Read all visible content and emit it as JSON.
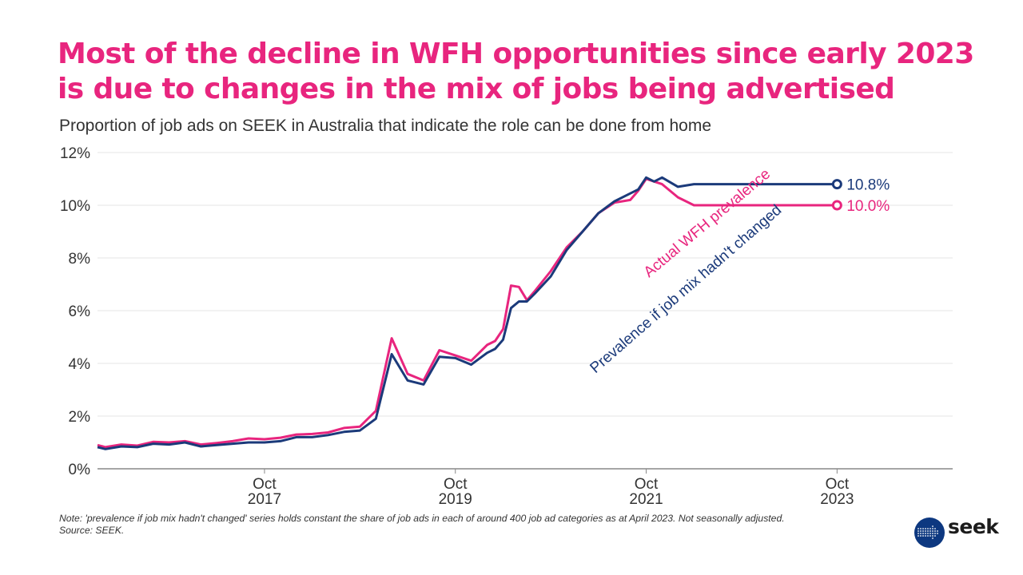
{
  "header": {
    "title_line1": "Most of the decline in WFH opportunities since early 2023",
    "title_line2": "is due to changes in the mix of jobs being advertised",
    "subtitle": "Proportion of job ads on SEEK in Australia that indicate the role can be done from home"
  },
  "footer": {
    "note": "Note: 'prevalence if job mix hadn't changed' series holds constant the share of job ads in each of around 400 job ad categories as at April 2023. Not seasonally adjusted.",
    "source": "Source: SEEK.",
    "logo_text": "seek"
  },
  "colors": {
    "actual": "#e8257e",
    "fixed_mix": "#1b3a7a",
    "grid": "#eeeeee",
    "axis": "#888888",
    "text": "#333333"
  },
  "chart_data": {
    "type": "line",
    "title": "Most of the decline in WFH opportunities since early 2023 is due to changes in the mix of jobs being advertised",
    "subtitle": "Proportion of job ads on SEEK in Australia that indicate the role can be done from home",
    "xlabel": "",
    "ylabel": "",
    "ylim": [
      0,
      12
    ],
    "xlim": [
      "2016-01",
      "2024-09"
    ],
    "grid": true,
    "yticks": [
      {
        "value": 0,
        "label": "0%"
      },
      {
        "value": 2,
        "label": "2%"
      },
      {
        "value": 4,
        "label": "4%"
      },
      {
        "value": 6,
        "label": "6%"
      },
      {
        "value": 8,
        "label": "8%"
      },
      {
        "value": 10,
        "label": "10%"
      },
      {
        "value": 12,
        "label": "12%"
      }
    ],
    "xticks": [
      {
        "month": 21,
        "line1": "Oct",
        "line2": "2017"
      },
      {
        "month": 45,
        "line1": "Oct",
        "line2": "2019"
      },
      {
        "month": 69,
        "line1": "Oct",
        "line2": "2021"
      },
      {
        "month": 93,
        "line1": "Oct",
        "line2": "2023"
      }
    ],
    "x_unit": "months since Jan 2016",
    "x": [
      0,
      1,
      3,
      5,
      7,
      9,
      11,
      13,
      15,
      17,
      19,
      21,
      23,
      25,
      27,
      29,
      31,
      33,
      35,
      37,
      39,
      41,
      43,
      45,
      47,
      49,
      50,
      51,
      52,
      53,
      54,
      55,
      57,
      59,
      61,
      63,
      65,
      67,
      68,
      69,
      70,
      71,
      73,
      75,
      77,
      79,
      81,
      83,
      85,
      86,
      87,
      88,
      89,
      90,
      91,
      92,
      93
    ],
    "series": [
      {
        "name": "Actual WFH prevalence",
        "label": "Actual WFH prevalence",
        "end_label": "10.0%",
        "color": "#e8257e",
        "values": [
          0.9,
          0.82,
          0.92,
          0.88,
          1.02,
          1.0,
          1.05,
          0.92,
          0.98,
          1.05,
          1.15,
          1.12,
          1.18,
          1.3,
          1.32,
          1.38,
          1.55,
          1.6,
          2.2,
          4.95,
          3.6,
          3.35,
          4.5,
          4.3,
          4.1,
          4.7,
          4.85,
          5.3,
          6.95,
          6.9,
          6.4,
          6.75,
          7.5,
          8.4,
          9.0,
          9.7,
          10.1,
          10.2,
          10.55,
          11.0,
          10.9,
          10.8,
          10.3,
          10.0,
          10.0,
          10.0,
          10.0,
          10.0,
          10.0,
          10.0,
          10.0,
          10.0,
          10.0,
          10.0,
          10.0,
          10.0,
          10.0
        ],
        "last_value": 10.0
      },
      {
        "name": "Prevalence if job mix hadn't changed",
        "label": "Prevalence if job mix hadn't changed",
        "end_label": "10.8%",
        "color": "#1b3a7a",
        "values": [
          0.82,
          0.75,
          0.85,
          0.82,
          0.95,
          0.92,
          1.0,
          0.85,
          0.9,
          0.95,
          1.0,
          1.0,
          1.05,
          1.2,
          1.2,
          1.28,
          1.4,
          1.45,
          1.9,
          4.35,
          3.35,
          3.2,
          4.25,
          4.2,
          3.95,
          4.4,
          4.55,
          4.9,
          6.1,
          6.35,
          6.35,
          6.65,
          7.3,
          8.3,
          9.0,
          9.7,
          10.15,
          10.45,
          10.6,
          11.05,
          10.9,
          11.05,
          10.7,
          10.8,
          10.8,
          10.8,
          10.8,
          10.8,
          10.8,
          10.8,
          10.8,
          10.8,
          10.8,
          10.8,
          10.8,
          10.8,
          10.8
        ],
        "last_value": 10.8
      }
    ]
  }
}
